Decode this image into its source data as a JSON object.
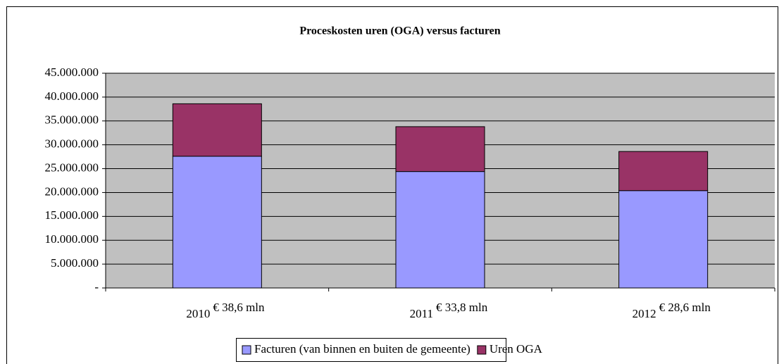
{
  "chart_data": {
    "type": "stacked_bar",
    "title": "Proceskosten uren (OGA) versus facturen",
    "categories": [
      "2010",
      "2011",
      "2012"
    ],
    "annotations": [
      "€ 38,6 mln",
      "€ 33,8 mln",
      "€ 28,6 mln"
    ],
    "series": [
      {
        "name": "Facturen (van binnen en buiten de gemeente)",
        "color": "#9999ff",
        "values": [
          27600000,
          24400000,
          20400000
        ]
      },
      {
        "name": "Uren OGA",
        "color": "#993366",
        "values": [
          11000000,
          9400000,
          8200000
        ]
      }
    ],
    "ylim": [
      0,
      45000000
    ],
    "yticks": [
      {
        "value": 0,
        "label": "-"
      },
      {
        "value": 5000000,
        "label": "5.000.000"
      },
      {
        "value": 10000000,
        "label": "10.000.000"
      },
      {
        "value": 15000000,
        "label": "15.000.000"
      },
      {
        "value": 20000000,
        "label": "20.000.000"
      },
      {
        "value": 25000000,
        "label": "25.000.000"
      },
      {
        "value": 30000000,
        "label": "30.000.000"
      },
      {
        "value": 35000000,
        "label": "35.000.000"
      },
      {
        "value": 40000000,
        "label": "40.000.000"
      },
      {
        "value": 45000000,
        "label": "45.000.000"
      }
    ],
    "grid": true,
    "legend": "bottom"
  }
}
